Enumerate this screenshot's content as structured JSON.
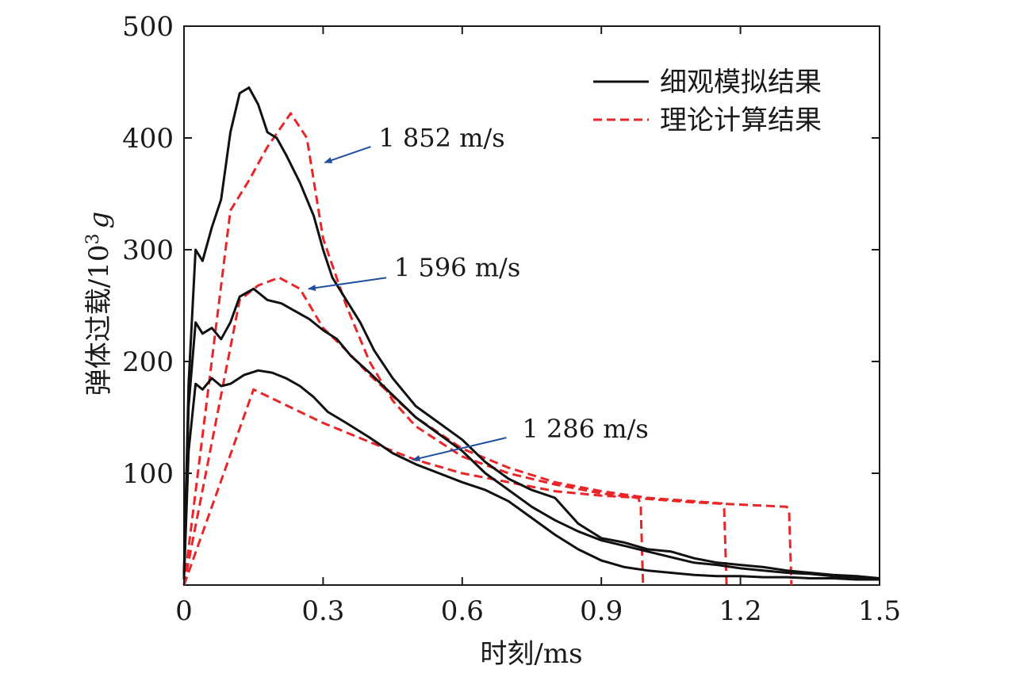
{
  "chart_data": {
    "type": "line",
    "title": "",
    "xlabel": "时刻/ms",
    "ylabel": "弹体过载/10",
    "ylabel_superscript": "3",
    "ylabel_unit": "g",
    "xlim": [
      0,
      1.5
    ],
    "ylim": [
      0,
      500
    ],
    "xticks": [
      "0",
      "0.3",
      "0.6",
      "0.9",
      "1.2",
      "1.5"
    ],
    "yticks": [
      "100",
      "200",
      "300",
      "400",
      "500"
    ],
    "legend_position": "top-right",
    "legend": [
      {
        "label": "细观模拟结果",
        "style": "solid",
        "color": "#111111"
      },
      {
        "label": "理论计算结果",
        "style": "dashed",
        "color": "#e8262a"
      }
    ],
    "annotations": [
      {
        "text": "1 852 m/s",
        "x_data": 0.3,
        "y_data": 378
      },
      {
        "text": "1 596 m/s",
        "x_data": 0.265,
        "y_data": 265
      },
      {
        "text": "1 286 m/s",
        "x_data": 0.49,
        "y_data": 112
      }
    ],
    "arrow_color": "#1f4e9c",
    "series": [
      {
        "name": "1 852 m/s",
        "kind": "theory",
        "x": [
          0,
          0.1,
          0.14,
          0.18,
          0.23,
          0.265,
          0.3,
          0.35,
          0.4,
          0.45,
          0.5,
          0.6,
          0.7,
          0.8,
          0.9,
          1.0,
          1.1,
          1.2,
          1.3,
          1.305,
          1.31
        ],
        "y": [
          0,
          335,
          362,
          392,
          422,
          400,
          310,
          250,
          200,
          165,
          142,
          115,
          100,
          90,
          82,
          77,
          74,
          72,
          70,
          65,
          0
        ]
      },
      {
        "name": "1 596 m/s",
        "kind": "theory",
        "x": [
          0,
          0.12,
          0.16,
          0.205,
          0.25,
          0.3,
          0.35,
          0.4,
          0.5,
          0.6,
          0.7,
          0.8,
          0.9,
          1.0,
          1.1,
          1.16,
          1.165,
          1.17
        ],
        "y": [
          0,
          255,
          268,
          275,
          265,
          230,
          210,
          188,
          150,
          122,
          105,
          92,
          84,
          78,
          75,
          73,
          68,
          0
        ]
      },
      {
        "name": "1 286 m/s",
        "kind": "theory",
        "x": [
          0,
          0.15,
          0.2,
          0.3,
          0.4,
          0.5,
          0.6,
          0.7,
          0.8,
          0.9,
          0.98,
          0.985,
          0.99
        ],
        "y": [
          0,
          175,
          165,
          145,
          128,
          112,
          100,
          92,
          84,
          80,
          78,
          70,
          0
        ]
      },
      {
        "name": "1 852 m/s",
        "kind": "simulation",
        "x": [
          0,
          0.01,
          0.025,
          0.04,
          0.06,
          0.08,
          0.1,
          0.12,
          0.14,
          0.16,
          0.18,
          0.2,
          0.22,
          0.25,
          0.28,
          0.3,
          0.32,
          0.35,
          0.38,
          0.41,
          0.45,
          0.5,
          0.55,
          0.6,
          0.65,
          0.7,
          0.75,
          0.8,
          0.85,
          0.9,
          0.95,
          1.0,
          1.05,
          1.1,
          1.15,
          1.2,
          1.25,
          1.3,
          1.35,
          1.4,
          1.45,
          1.5
        ],
        "y": [
          10,
          180,
          300,
          290,
          320,
          345,
          405,
          440,
          445,
          430,
          405,
          400,
          385,
          360,
          330,
          300,
          275,
          255,
          235,
          210,
          185,
          160,
          145,
          130,
          110,
          95,
          85,
          78,
          55,
          42,
          38,
          32,
          30,
          24,
          20,
          18,
          16,
          13,
          11,
          9,
          8,
          6
        ]
      },
      {
        "name": "1 596 m/s",
        "kind": "simulation",
        "x": [
          0,
          0.01,
          0.025,
          0.04,
          0.06,
          0.08,
          0.1,
          0.12,
          0.15,
          0.18,
          0.21,
          0.24,
          0.27,
          0.3,
          0.33,
          0.36,
          0.4,
          0.45,
          0.5,
          0.55,
          0.6,
          0.65,
          0.7,
          0.75,
          0.8,
          0.85,
          0.9,
          0.95,
          1.0,
          1.05,
          1.1,
          1.15,
          1.2,
          1.25,
          1.3,
          1.35,
          1.4,
          1.45,
          1.5
        ],
        "y": [
          8,
          160,
          235,
          225,
          230,
          220,
          235,
          258,
          265,
          255,
          252,
          245,
          238,
          228,
          220,
          205,
          190,
          170,
          150,
          135,
          120,
          100,
          85,
          70,
          58,
          48,
          40,
          35,
          30,
          25,
          20,
          18,
          15,
          13,
          11,
          10,
          8,
          7,
          5
        ]
      },
      {
        "name": "1 286 m/s",
        "kind": "simulation",
        "x": [
          0,
          0.01,
          0.025,
          0.04,
          0.06,
          0.08,
          0.1,
          0.13,
          0.16,
          0.19,
          0.22,
          0.25,
          0.28,
          0.31,
          0.35,
          0.4,
          0.45,
          0.5,
          0.55,
          0.6,
          0.65,
          0.7,
          0.75,
          0.8,
          0.85,
          0.9,
          0.95,
          1.0,
          1.05,
          1.1,
          1.15,
          1.2,
          1.25,
          1.3,
          1.35,
          1.4,
          1.45,
          1.5
        ],
        "y": [
          5,
          120,
          180,
          175,
          185,
          178,
          180,
          188,
          192,
          190,
          185,
          178,
          168,
          155,
          145,
          132,
          118,
          108,
          100,
          92,
          85,
          75,
          60,
          45,
          32,
          22,
          16,
          13,
          11,
          9,
          8,
          8,
          7,
          7,
          6,
          6,
          5,
          5
        ]
      }
    ]
  }
}
